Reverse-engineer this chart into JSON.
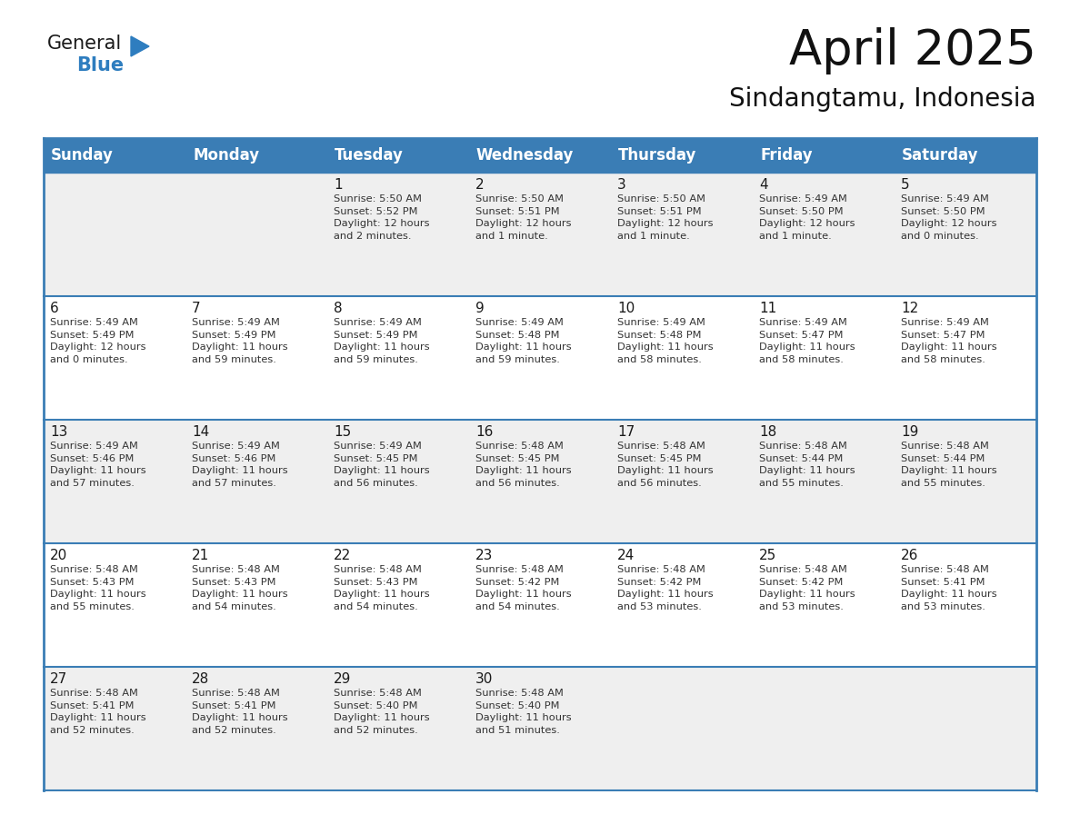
{
  "title": "April 2025",
  "subtitle": "Sindangtamu, Indonesia",
  "header_color": "#3A7DB5",
  "header_text_color": "#FFFFFF",
  "cell_bg_light": "#EFEFEF",
  "cell_bg_white": "#FFFFFF",
  "row_line_color": "#3A7DB5",
  "days_of_week": [
    "Sunday",
    "Monday",
    "Tuesday",
    "Wednesday",
    "Thursday",
    "Friday",
    "Saturday"
  ],
  "title_fontsize": 38,
  "subtitle_fontsize": 20,
  "header_fontsize": 12,
  "day_num_fontsize": 11,
  "cell_fontsize": 8.2,
  "logo_text1": "General",
  "logo_text2": "Blue",
  "logo_color1": "#1a1a1a",
  "logo_color2": "#2E7DBF",
  "logo_triangle_color": "#2E7DBF",
  "weeks": [
    [
      {
        "day": "",
        "text": ""
      },
      {
        "day": "",
        "text": ""
      },
      {
        "day": "1",
        "text": "Sunrise: 5:50 AM\nSunset: 5:52 PM\nDaylight: 12 hours\nand 2 minutes."
      },
      {
        "day": "2",
        "text": "Sunrise: 5:50 AM\nSunset: 5:51 PM\nDaylight: 12 hours\nand 1 minute."
      },
      {
        "day": "3",
        "text": "Sunrise: 5:50 AM\nSunset: 5:51 PM\nDaylight: 12 hours\nand 1 minute."
      },
      {
        "day": "4",
        "text": "Sunrise: 5:49 AM\nSunset: 5:50 PM\nDaylight: 12 hours\nand 1 minute."
      },
      {
        "day": "5",
        "text": "Sunrise: 5:49 AM\nSunset: 5:50 PM\nDaylight: 12 hours\nand 0 minutes."
      }
    ],
    [
      {
        "day": "6",
        "text": "Sunrise: 5:49 AM\nSunset: 5:49 PM\nDaylight: 12 hours\nand 0 minutes."
      },
      {
        "day": "7",
        "text": "Sunrise: 5:49 AM\nSunset: 5:49 PM\nDaylight: 11 hours\nand 59 minutes."
      },
      {
        "day": "8",
        "text": "Sunrise: 5:49 AM\nSunset: 5:49 PM\nDaylight: 11 hours\nand 59 minutes."
      },
      {
        "day": "9",
        "text": "Sunrise: 5:49 AM\nSunset: 5:48 PM\nDaylight: 11 hours\nand 59 minutes."
      },
      {
        "day": "10",
        "text": "Sunrise: 5:49 AM\nSunset: 5:48 PM\nDaylight: 11 hours\nand 58 minutes."
      },
      {
        "day": "11",
        "text": "Sunrise: 5:49 AM\nSunset: 5:47 PM\nDaylight: 11 hours\nand 58 minutes."
      },
      {
        "day": "12",
        "text": "Sunrise: 5:49 AM\nSunset: 5:47 PM\nDaylight: 11 hours\nand 58 minutes."
      }
    ],
    [
      {
        "day": "13",
        "text": "Sunrise: 5:49 AM\nSunset: 5:46 PM\nDaylight: 11 hours\nand 57 minutes."
      },
      {
        "day": "14",
        "text": "Sunrise: 5:49 AM\nSunset: 5:46 PM\nDaylight: 11 hours\nand 57 minutes."
      },
      {
        "day": "15",
        "text": "Sunrise: 5:49 AM\nSunset: 5:45 PM\nDaylight: 11 hours\nand 56 minutes."
      },
      {
        "day": "16",
        "text": "Sunrise: 5:48 AM\nSunset: 5:45 PM\nDaylight: 11 hours\nand 56 minutes."
      },
      {
        "day": "17",
        "text": "Sunrise: 5:48 AM\nSunset: 5:45 PM\nDaylight: 11 hours\nand 56 minutes."
      },
      {
        "day": "18",
        "text": "Sunrise: 5:48 AM\nSunset: 5:44 PM\nDaylight: 11 hours\nand 55 minutes."
      },
      {
        "day": "19",
        "text": "Sunrise: 5:48 AM\nSunset: 5:44 PM\nDaylight: 11 hours\nand 55 minutes."
      }
    ],
    [
      {
        "day": "20",
        "text": "Sunrise: 5:48 AM\nSunset: 5:43 PM\nDaylight: 11 hours\nand 55 minutes."
      },
      {
        "day": "21",
        "text": "Sunrise: 5:48 AM\nSunset: 5:43 PM\nDaylight: 11 hours\nand 54 minutes."
      },
      {
        "day": "22",
        "text": "Sunrise: 5:48 AM\nSunset: 5:43 PM\nDaylight: 11 hours\nand 54 minutes."
      },
      {
        "day": "23",
        "text": "Sunrise: 5:48 AM\nSunset: 5:42 PM\nDaylight: 11 hours\nand 54 minutes."
      },
      {
        "day": "24",
        "text": "Sunrise: 5:48 AM\nSunset: 5:42 PM\nDaylight: 11 hours\nand 53 minutes."
      },
      {
        "day": "25",
        "text": "Sunrise: 5:48 AM\nSunset: 5:42 PM\nDaylight: 11 hours\nand 53 minutes."
      },
      {
        "day": "26",
        "text": "Sunrise: 5:48 AM\nSunset: 5:41 PM\nDaylight: 11 hours\nand 53 minutes."
      }
    ],
    [
      {
        "day": "27",
        "text": "Sunrise: 5:48 AM\nSunset: 5:41 PM\nDaylight: 11 hours\nand 52 minutes."
      },
      {
        "day": "28",
        "text": "Sunrise: 5:48 AM\nSunset: 5:41 PM\nDaylight: 11 hours\nand 52 minutes."
      },
      {
        "day": "29",
        "text": "Sunrise: 5:48 AM\nSunset: 5:40 PM\nDaylight: 11 hours\nand 52 minutes."
      },
      {
        "day": "30",
        "text": "Sunrise: 5:48 AM\nSunset: 5:40 PM\nDaylight: 11 hours\nand 51 minutes."
      },
      {
        "day": "",
        "text": ""
      },
      {
        "day": "",
        "text": ""
      },
      {
        "day": "",
        "text": ""
      }
    ]
  ]
}
